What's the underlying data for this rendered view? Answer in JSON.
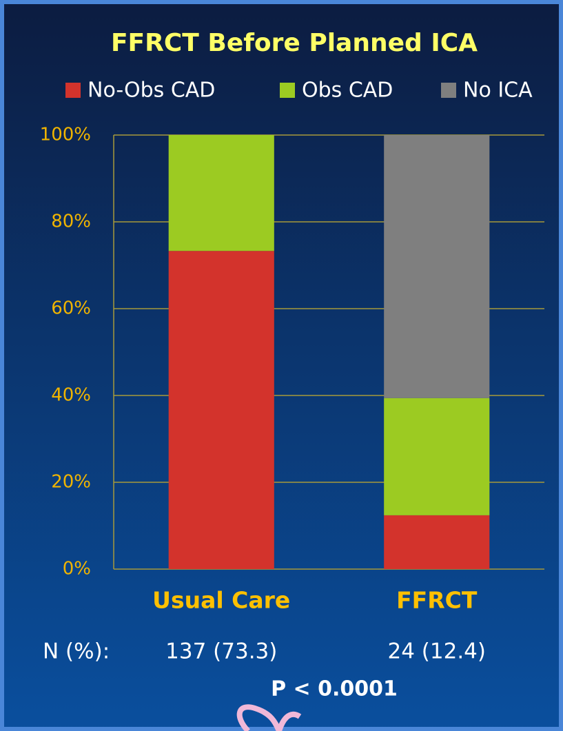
{
  "chart_data": {
    "type": "stacked_bar",
    "title": "FFRCT Before Planned ICA",
    "categories": [
      "Usual Care",
      "FFRCT"
    ],
    "series": [
      {
        "name": "No-Obs CAD",
        "color": "#d3332c",
        "values": [
          73.3,
          12.4
        ]
      },
      {
        "name": "Obs CAD",
        "color": "#9ccb22",
        "values": [
          26.7,
          27.0
        ]
      },
      {
        "name": "No ICA",
        "color": "#7f7f7f",
        "values": [
          0,
          60.6
        ]
      }
    ],
    "ylim": [
      0,
      100
    ],
    "yticks": [
      {
        "value": 0,
        "label": "0%"
      },
      {
        "value": 20,
        "label": "20%"
      },
      {
        "value": 40,
        "label": "40%"
      },
      {
        "value": 60,
        "label": "60%"
      },
      {
        "value": 80,
        "label": "80%"
      },
      {
        "value": 100,
        "label": "100%"
      }
    ],
    "grid": true,
    "n_label": "N (%):",
    "n_values": [
      "137 (73.3)",
      "24 (12.4)"
    ],
    "p_value": "P < 0.0001"
  }
}
